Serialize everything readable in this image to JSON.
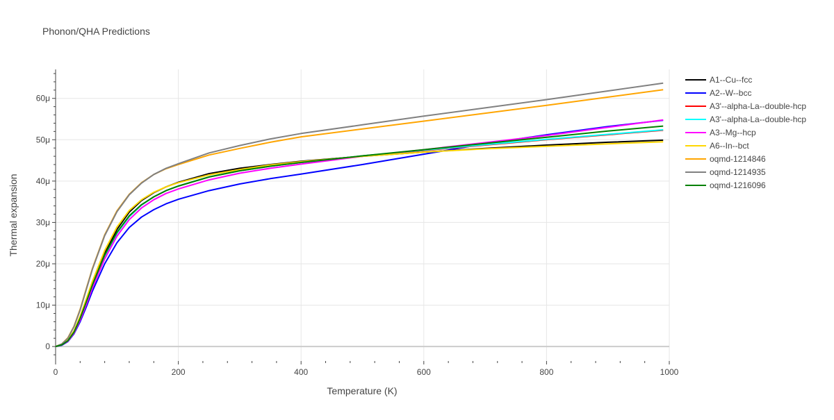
{
  "chart_data": {
    "type": "line",
    "title": "Phonon/QHA Predictions",
    "xlabel": "Temperature (K)",
    "ylabel": "Thermal expansion",
    "xlim": [
      0,
      1000
    ],
    "ylim": [
      -3.5,
      67
    ],
    "x_ticks": [
      0,
      200,
      400,
      600,
      800,
      1000
    ],
    "x_tick_labels": [
      "0",
      "200",
      "400",
      "600",
      "800",
      "1000"
    ],
    "y_ticks": [
      0,
      10,
      20,
      30,
      40,
      50,
      60
    ],
    "y_tick_labels": [
      "0",
      "10μ",
      "20μ",
      "30μ",
      "40μ",
      "50μ",
      "60μ"
    ],
    "y_unit": "μ",
    "grid": true,
    "legend_position": "right",
    "x": [
      0,
      10,
      20,
      30,
      40,
      50,
      60,
      80,
      100,
      120,
      140,
      160,
      180,
      200,
      250,
      300,
      350,
      400,
      500,
      600,
      700,
      800,
      900,
      990
    ],
    "series": [
      {
        "name": "A1--Cu--fcc",
        "color": "#000000",
        "values": [
          0,
          0.4,
          1.5,
          3.6,
          7,
          11,
          15.2,
          22.5,
          28.3,
          32.5,
          35.3,
          37.2,
          38.6,
          39.7,
          41.8,
          43.1,
          44,
          44.8,
          46,
          47,
          47.9,
          48.7,
          49.4,
          49.9
        ]
      },
      {
        "name": "A2--W--bcc",
        "color": "#0000ff",
        "values": [
          0,
          0.3,
          1.2,
          3.1,
          6,
          9.6,
          13.4,
          20,
          25.1,
          28.8,
          31.3,
          33.1,
          34.5,
          35.6,
          37.7,
          39.3,
          40.6,
          41.7,
          44,
          46.5,
          49,
          51.2,
          53.2,
          54.7
        ]
      },
      {
        "name": "A3'--alpha-La--double-hcp",
        "color": "#ff0000",
        "values": [
          0,
          0.4,
          1.4,
          3.4,
          6.6,
          10.5,
          14.6,
          21.8,
          27.4,
          31.4,
          34.2,
          36.2,
          37.7,
          38.8,
          41,
          42.5,
          43.6,
          44.5,
          46.1,
          47.4,
          48.7,
          50,
          51.2,
          52.3
        ]
      },
      {
        "name": "A3'--alpha-La--double-hcp",
        "color": "#00ffff",
        "values": [
          0,
          0.4,
          1.4,
          3.4,
          6.6,
          10.5,
          14.6,
          21.8,
          27.4,
          31.4,
          34.2,
          36.2,
          37.7,
          38.8,
          41,
          42.5,
          43.6,
          44.5,
          46.1,
          47.5,
          48.8,
          50.1,
          51.3,
          52.4
        ]
      },
      {
        "name": "A3--Mg--hcp",
        "color": "#ff00ff",
        "values": [
          0,
          0.4,
          1.3,
          3.3,
          6.4,
          10.2,
          14.2,
          21.2,
          26.7,
          30.7,
          33.5,
          35.5,
          37,
          38.1,
          40.3,
          41.9,
          43.1,
          44.1,
          46,
          47.6,
          49.3,
          51,
          53,
          54.8
        ]
      },
      {
        "name": "A6--In--bct",
        "color": "#ffd700",
        "values": [
          0,
          0.5,
          1.6,
          3.8,
          7.3,
          11.5,
          15.8,
          23.2,
          28.9,
          32.9,
          35.5,
          37.3,
          38.6,
          39.6,
          41.5,
          42.8,
          43.9,
          44.7,
          46,
          47,
          47.8,
          48.4,
          49,
          49.5
        ]
      },
      {
        "name": "oqmd-1214846",
        "color": "#ffa500",
        "values": [
          0,
          0.6,
          2.1,
          4.9,
          9,
          14,
          18.9,
          27,
          32.8,
          36.8,
          39.6,
          41.6,
          43,
          44,
          46.3,
          47.9,
          49.4,
          50.7,
          52.6,
          54.5,
          56.4,
          58.3,
          60.3,
          62.1
        ]
      },
      {
        "name": "oqmd-1214935",
        "color": "#808080",
        "values": [
          0,
          0.6,
          2,
          4.8,
          8.8,
          13.8,
          18.7,
          26.8,
          32.6,
          36.7,
          39.5,
          41.6,
          43.1,
          44.2,
          46.8,
          48.6,
          50.2,
          51.5,
          53.6,
          55.7,
          57.7,
          59.7,
          61.8,
          63.7
        ]
      },
      {
        "name": "oqmd-1216096",
        "color": "#008000",
        "values": [
          0,
          0.4,
          1.4,
          3.5,
          6.8,
          10.8,
          14.9,
          22.1,
          27.6,
          31.6,
          34.3,
          36.2,
          37.7,
          38.8,
          41,
          42.5,
          43.6,
          44.5,
          46.1,
          47.6,
          49.1,
          50.6,
          52.1,
          53.3
        ]
      }
    ]
  }
}
